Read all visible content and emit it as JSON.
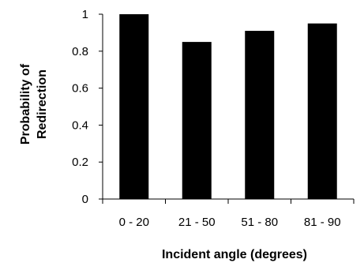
{
  "chart_data": {
    "type": "bar",
    "title": "",
    "xlabel": "Incident angle (degrees)",
    "ylabel_lines": [
      "Probability of",
      "Redirection"
    ],
    "categories": [
      "0 - 20",
      "21 - 50",
      "51 - 80",
      "81 - 90"
    ],
    "values": [
      1.0,
      0.85,
      0.91,
      0.95
    ],
    "ylim": [
      0,
      1
    ],
    "yticks": [
      0,
      0.2,
      0.4,
      0.6,
      0.8,
      1
    ],
    "ytick_labels": [
      "0",
      "0.2",
      "0.4",
      "0.6",
      "0.8",
      "1"
    ],
    "grid": false,
    "legend": "none",
    "bar_color": "#000000"
  }
}
